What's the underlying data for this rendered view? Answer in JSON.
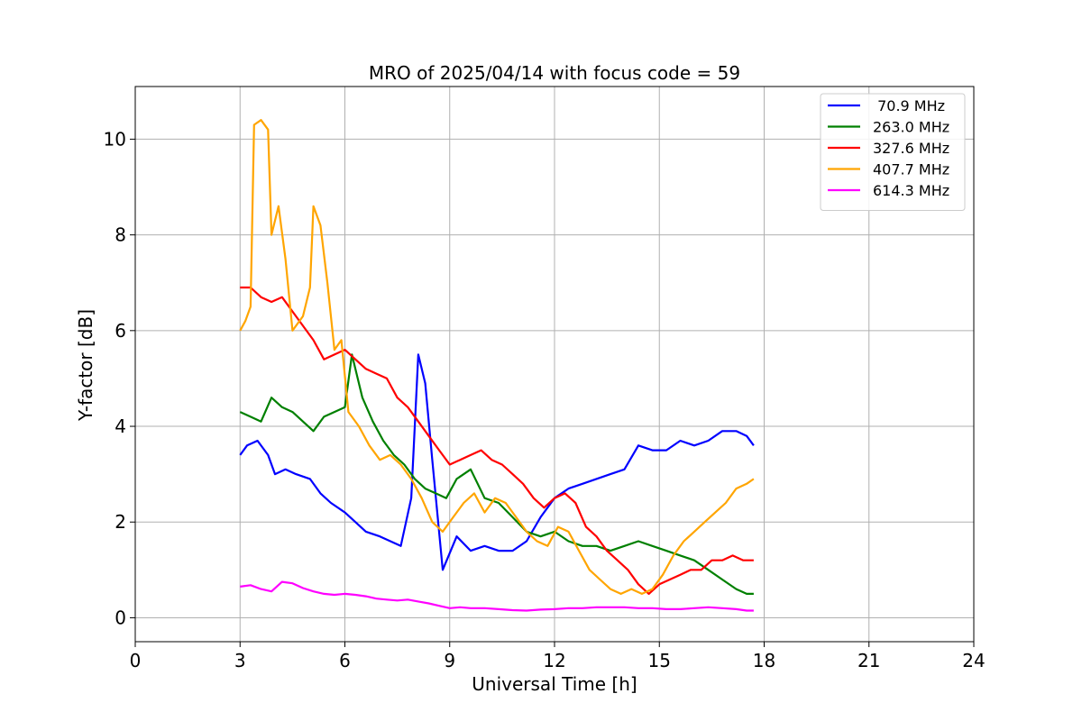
{
  "chart_data": {
    "type": "line",
    "title": "MRO of 2025/04/14 with focus code = 59",
    "xlabel": "Universal Time [h]",
    "ylabel": "Y-factor [dB]",
    "xlim": [
      0,
      24
    ],
    "ylim": [
      -0.5,
      11.1
    ],
    "xticks": [
      0,
      3,
      6,
      9,
      12,
      15,
      18,
      21,
      24
    ],
    "yticks": [
      0,
      2,
      4,
      6,
      8,
      10
    ],
    "grid": true,
    "legend_position": "top-right",
    "series": [
      {
        "name": " 70.9 MHz",
        "color": "#0000ff",
        "x": [
          3.0,
          3.2,
          3.5,
          3.8,
          4.0,
          4.3,
          4.6,
          5.0,
          5.3,
          5.6,
          6.0,
          6.3,
          6.6,
          7.0,
          7.3,
          7.6,
          7.9,
          8.1,
          8.3,
          8.5,
          8.8,
          9.2,
          9.6,
          10.0,
          10.4,
          10.8,
          11.2,
          11.6,
          12.0,
          12.4,
          12.8,
          13.2,
          13.6,
          14.0,
          14.4,
          14.8,
          15.2,
          15.6,
          16.0,
          16.4,
          16.8,
          17.2,
          17.5,
          17.7
        ],
        "y": [
          3.4,
          3.6,
          3.7,
          3.4,
          3.0,
          3.1,
          3.0,
          2.9,
          2.6,
          2.4,
          2.2,
          2.0,
          1.8,
          1.7,
          1.6,
          1.5,
          2.5,
          5.5,
          4.9,
          3.3,
          1.0,
          1.7,
          1.4,
          1.5,
          1.4,
          1.4,
          1.6,
          2.1,
          2.5,
          2.7,
          2.8,
          2.9,
          3.0,
          3.1,
          3.6,
          3.5,
          3.5,
          3.7,
          3.6,
          3.7,
          3.9,
          3.9,
          3.8,
          3.6
        ]
      },
      {
        "name": "263.0 MHz",
        "color": "#008000",
        "x": [
          3.0,
          3.3,
          3.6,
          3.9,
          4.2,
          4.5,
          4.8,
          5.1,
          5.4,
          5.7,
          6.0,
          6.2,
          6.5,
          6.8,
          7.1,
          7.4,
          7.7,
          8.0,
          8.3,
          8.6,
          8.9,
          9.2,
          9.6,
          10.0,
          10.4,
          10.8,
          11.2,
          11.6,
          12.0,
          12.4,
          12.8,
          13.2,
          13.6,
          14.0,
          14.4,
          14.8,
          15.2,
          15.6,
          16.0,
          16.4,
          16.8,
          17.2,
          17.5,
          17.7
        ],
        "y": [
          4.3,
          4.2,
          4.1,
          4.6,
          4.4,
          4.3,
          4.1,
          3.9,
          4.2,
          4.3,
          4.4,
          5.5,
          4.6,
          4.1,
          3.7,
          3.4,
          3.2,
          2.9,
          2.7,
          2.6,
          2.5,
          2.9,
          3.1,
          2.5,
          2.4,
          2.1,
          1.8,
          1.7,
          1.8,
          1.6,
          1.5,
          1.5,
          1.4,
          1.5,
          1.6,
          1.5,
          1.4,
          1.3,
          1.2,
          1.0,
          0.8,
          0.6,
          0.5,
          0.5
        ]
      },
      {
        "name": "327.6 MHz",
        "color": "#ff0000",
        "x": [
          3.0,
          3.3,
          3.6,
          3.9,
          4.2,
          4.5,
          4.8,
          5.1,
          5.4,
          5.7,
          6.0,
          6.3,
          6.6,
          6.9,
          7.2,
          7.5,
          7.8,
          8.1,
          8.4,
          8.7,
          9.0,
          9.3,
          9.6,
          9.9,
          10.2,
          10.5,
          10.8,
          11.1,
          11.4,
          11.7,
          12.0,
          12.3,
          12.6,
          12.9,
          13.2,
          13.5,
          13.8,
          14.1,
          14.4,
          14.7,
          15.0,
          15.3,
          15.6,
          15.9,
          16.2,
          16.5,
          16.8,
          17.1,
          17.4,
          17.7
        ],
        "y": [
          6.9,
          6.9,
          6.7,
          6.6,
          6.7,
          6.4,
          6.1,
          5.8,
          5.4,
          5.5,
          5.6,
          5.4,
          5.2,
          5.1,
          5.0,
          4.6,
          4.4,
          4.1,
          3.8,
          3.5,
          3.2,
          3.3,
          3.4,
          3.5,
          3.3,
          3.2,
          3.0,
          2.8,
          2.5,
          2.3,
          2.5,
          2.6,
          2.4,
          1.9,
          1.7,
          1.4,
          1.2,
          1.0,
          0.7,
          0.5,
          0.7,
          0.8,
          0.9,
          1.0,
          1.0,
          1.2,
          1.2,
          1.3,
          1.2,
          1.2
        ]
      },
      {
        "name": "407.7 MHz",
        "color": "#ffa500",
        "x": [
          3.0,
          3.15,
          3.3,
          3.4,
          3.6,
          3.8,
          3.9,
          4.1,
          4.3,
          4.5,
          4.8,
          5.0,
          5.1,
          5.3,
          5.5,
          5.7,
          5.9,
          6.1,
          6.4,
          6.7,
          7.0,
          7.3,
          7.6,
          7.9,
          8.2,
          8.5,
          8.8,
          9.1,
          9.4,
          9.7,
          10.0,
          10.3,
          10.6,
          10.9,
          11.2,
          11.5,
          11.8,
          12.1,
          12.4,
          12.7,
          13.0,
          13.3,
          13.6,
          13.9,
          14.2,
          14.5,
          14.8,
          15.1,
          15.4,
          15.7,
          16.0,
          16.3,
          16.6,
          16.9,
          17.2,
          17.5,
          17.7
        ],
        "y": [
          6.0,
          6.2,
          6.5,
          10.3,
          10.4,
          10.2,
          8.0,
          8.6,
          7.5,
          6.0,
          6.3,
          6.9,
          8.6,
          8.2,
          7.0,
          5.6,
          5.8,
          4.3,
          4.0,
          3.6,
          3.3,
          3.4,
          3.2,
          2.9,
          2.5,
          2.0,
          1.8,
          2.1,
          2.4,
          2.6,
          2.2,
          2.5,
          2.4,
          2.1,
          1.8,
          1.6,
          1.5,
          1.9,
          1.8,
          1.4,
          1.0,
          0.8,
          0.6,
          0.5,
          0.6,
          0.5,
          0.6,
          0.9,
          1.3,
          1.6,
          1.8,
          2.0,
          2.2,
          2.4,
          2.7,
          2.8,
          2.9
        ]
      },
      {
        "name": "614.3 MHz",
        "color": "#ff00ff",
        "x": [
          3.0,
          3.3,
          3.6,
          3.9,
          4.2,
          4.5,
          4.8,
          5.1,
          5.4,
          5.7,
          6.0,
          6.3,
          6.6,
          6.9,
          7.2,
          7.5,
          7.8,
          8.1,
          8.4,
          8.7,
          9.0,
          9.3,
          9.6,
          10.0,
          10.4,
          10.8,
          11.2,
          11.6,
          12.0,
          12.4,
          12.8,
          13.2,
          13.6,
          14.0,
          14.4,
          14.8,
          15.2,
          15.6,
          16.0,
          16.4,
          16.8,
          17.2,
          17.5,
          17.7
        ],
        "y": [
          0.65,
          0.68,
          0.6,
          0.55,
          0.75,
          0.72,
          0.62,
          0.55,
          0.5,
          0.48,
          0.5,
          0.48,
          0.45,
          0.4,
          0.38,
          0.36,
          0.38,
          0.34,
          0.3,
          0.25,
          0.2,
          0.22,
          0.2,
          0.2,
          0.18,
          0.16,
          0.15,
          0.17,
          0.18,
          0.2,
          0.2,
          0.22,
          0.22,
          0.22,
          0.2,
          0.2,
          0.18,
          0.18,
          0.2,
          0.22,
          0.2,
          0.18,
          0.15,
          0.15
        ]
      }
    ]
  }
}
